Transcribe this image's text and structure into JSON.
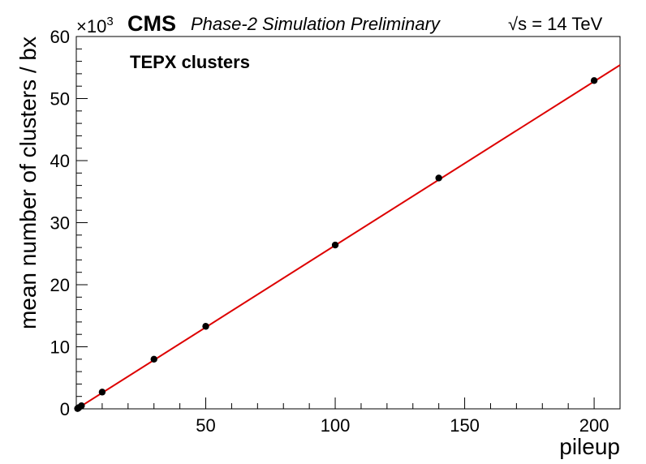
{
  "header": {
    "experiment": "CMS",
    "status": "Phase-2 Simulation Preliminary",
    "energy_sqrt": "√s",
    "energy_value": " = 14 TeV"
  },
  "chart_data": {
    "type": "scatter",
    "title": "TEPX clusters",
    "xlabel": "pileup",
    "ylabel": "mean number of clusters / bx",
    "y_multiplier_base": "×10",
    "y_multiplier_exp": "3",
    "xlim": [
      0,
      210
    ],
    "ylim": [
      0,
      60
    ],
    "x_ticks": [
      50,
      100,
      150,
      200
    ],
    "y_ticks": [
      0,
      10,
      20,
      30,
      40,
      50,
      60
    ],
    "grid": false,
    "series": [
      {
        "kind": "points",
        "marker_color": "#000000",
        "x": [
          0.5,
          1,
          2,
          10,
          30,
          50,
          100,
          140,
          200
        ],
        "y": [
          0.05,
          0.2,
          0.5,
          2.7,
          8.0,
          13.3,
          26.4,
          37.2,
          52.9
        ]
      },
      {
        "kind": "fit-line",
        "line_color": "#dd0000",
        "x": [
          0,
          210
        ],
        "y": [
          -0.06,
          55.4
        ]
      }
    ]
  }
}
